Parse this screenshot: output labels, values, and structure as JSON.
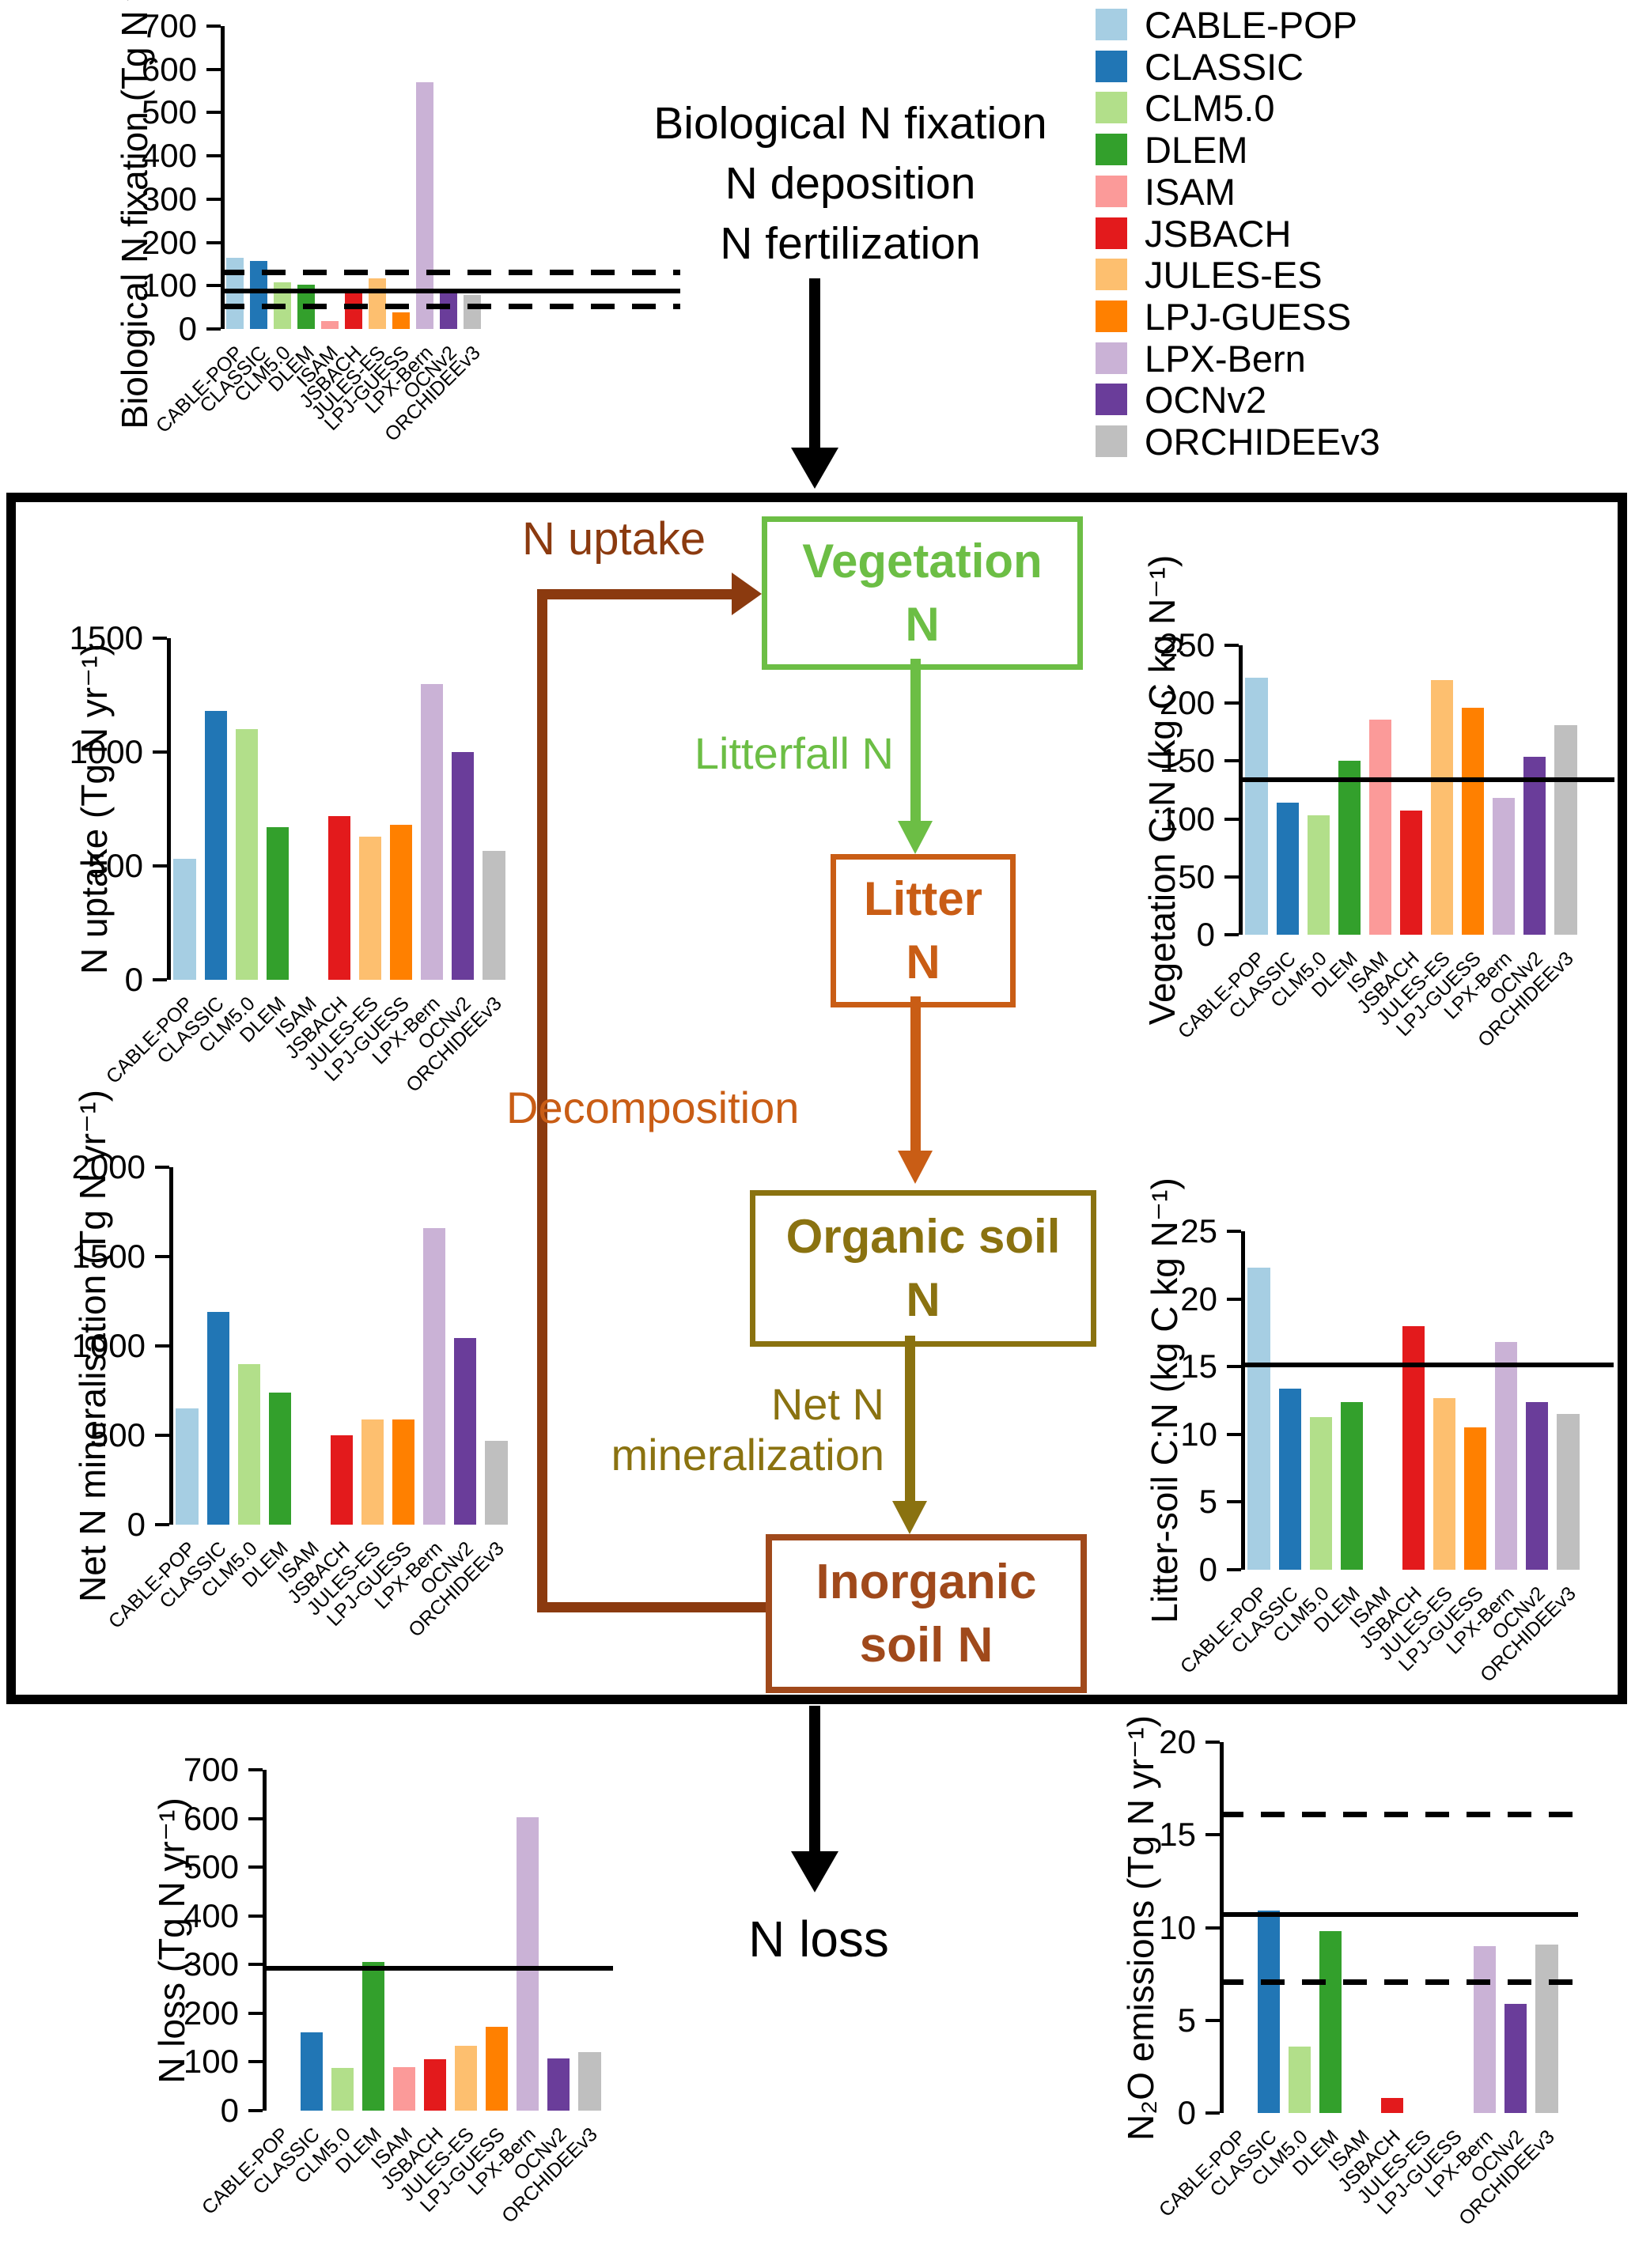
{
  "models": [
    "CABLE-POP",
    "CLASSIC",
    "CLM5.0",
    "DLEM",
    "ISAM",
    "JSBACH",
    "JULES-ES",
    "LPJ-GUESS",
    "LPX-Bern",
    "OCNv2",
    "ORCHIDEEv3"
  ],
  "palette": {
    "CABLE-POP": "#A6CEE3",
    "CLASSIC": "#2176B5",
    "CLM5.0": "#B2DF8A",
    "DLEM": "#33A02C",
    "ISAM": "#FB9A99",
    "JSBACH": "#E31A1C",
    "JULES-ES": "#FDBF6F",
    "LPJ-GUESS": "#FF8000",
    "LPX-Bern": "#CAB2D6",
    "OCNv2": "#6A3D9A",
    "ORCHIDEEv3": "#BFBFBF"
  },
  "legend": {
    "items": [
      {
        "label": "CABLE-POP",
        "color": "#A6CEE3"
      },
      {
        "label": "CLASSIC",
        "color": "#2176B5"
      },
      {
        "label": "CLM5.0",
        "color": "#B2DF8A"
      },
      {
        "label": "DLEM",
        "color": "#33A02C"
      },
      {
        "label": "ISAM",
        "color": "#FB9A99"
      },
      {
        "label": "JSBACH",
        "color": "#E31A1C"
      },
      {
        "label": "JULES-ES",
        "color": "#FDBF6F"
      },
      {
        "label": "LPJ-GUESS",
        "color": "#FF8000"
      },
      {
        "label": "LPX-Bern",
        "color": "#CAB2D6"
      },
      {
        "label": "OCNv2",
        "color": "#6A3D9A"
      },
      {
        "label": "ORCHIDEEv3",
        "color": "#BFBFBF"
      }
    ]
  },
  "flow": {
    "inputs_title_lines": [
      "Biological N fixation",
      "N deposition",
      "N fertilization"
    ],
    "boxes": {
      "vegetation": {
        "lines": [
          "Vegetation",
          "N"
        ],
        "color": "#6CBE45"
      },
      "litter": {
        "lines": [
          "Litter",
          "N"
        ],
        "color": "#C95D15"
      },
      "organic": {
        "lines": [
          "Organic soil",
          "N"
        ],
        "color": "#8A7210"
      },
      "inorganic": {
        "lines": [
          "Inorganic",
          "soil N"
        ],
        "color": "#A0491B"
      }
    },
    "labels": {
      "n_uptake": {
        "text": "N uptake",
        "color": "#8B3A0F"
      },
      "litterfall": {
        "text": "Litterfall N",
        "color": "#6CBE45"
      },
      "decomposition": {
        "text": "Decomposition",
        "color": "#C95D15"
      },
      "net_n_mineralization": {
        "lines": [
          "Net N",
          "mineralization"
        ],
        "color": "#8A7210"
      },
      "n_loss": {
        "text": "N loss",
        "color": "#000000"
      }
    }
  },
  "chart_data": [
    {
      "id": "biological_n_fixation",
      "type": "bar",
      "ylabel": "Biological N fixation (Tg N yr⁻¹)",
      "categories": [
        "CABLE-POP",
        "CLASSIC",
        "CLM5.0",
        "DLEM",
        "ISAM",
        "JSBACH",
        "JULES-ES",
        "LPJ-GUESS",
        "LPX-Bern",
        "OCNv2",
        "ORCHIDEEv3"
      ],
      "values": [
        165,
        158,
        108,
        102,
        18,
        86,
        117,
        38,
        570,
        92,
        79
      ],
      "ylim": [
        0,
        700
      ],
      "yticks": [
        0,
        100,
        200,
        300,
        400,
        500,
        600,
        700
      ],
      "ref_lines": [
        {
          "style": "solid",
          "value": 88
        },
        {
          "style": "dashed",
          "value": 132
        },
        {
          "style": "dashed",
          "value": 53
        }
      ]
    },
    {
      "id": "n_uptake",
      "type": "bar",
      "ylabel": "N uptake (Tg N yr⁻¹)",
      "categories": [
        "CABLE-POP",
        "CLASSIC",
        "CLM5.0",
        "DLEM",
        "ISAM",
        "JSBACH",
        "JULES-ES",
        "LPJ-GUESS",
        "LPX-Bern",
        "OCNv2",
        "ORCHIDEEv3"
      ],
      "values": [
        530,
        1180,
        1100,
        670,
        null,
        720,
        630,
        680,
        1300,
        1000,
        565
      ],
      "ylim": [
        0,
        1500
      ],
      "yticks": [
        0,
        500,
        1000,
        1500
      ],
      "ref_lines": []
    },
    {
      "id": "vegetation_cn",
      "type": "bar",
      "ylabel": "Vegetation C:N (kg C kg N⁻¹)",
      "categories": [
        "CABLE-POP",
        "CLASSIC",
        "CLM5.0",
        "DLEM",
        "ISAM",
        "JSBACH",
        "JULES-ES",
        "LPJ-GUESS",
        "LPX-Bern",
        "OCNv2",
        "ORCHIDEEv3"
      ],
      "values": [
        222,
        114,
        103,
        150,
        186,
        107,
        220,
        196,
        118,
        154,
        181
      ],
      "ylim": [
        0,
        250
      ],
      "yticks": [
        0,
        50,
        100,
        150,
        200,
        250
      ],
      "ref_lines": [
        {
          "style": "solid",
          "value": 134
        }
      ]
    },
    {
      "id": "net_n_mineralisation",
      "type": "bar",
      "ylabel": "Net N mineralisation (Tg N yr⁻¹)",
      "categories": [
        "CABLE-POP",
        "CLASSIC",
        "CLM5.0",
        "DLEM",
        "ISAM",
        "JSBACH",
        "JULES-ES",
        "LPJ-GUESS",
        "LPX-Bern",
        "OCNv2",
        "ORCHIDEEv3"
      ],
      "values": [
        650,
        1190,
        900,
        740,
        null,
        500,
        590,
        590,
        1660,
        1045,
        470
      ],
      "ylim": [
        0,
        2000
      ],
      "yticks": [
        0,
        500,
        1000,
        1500,
        2000
      ],
      "ref_lines": []
    },
    {
      "id": "litter_soil_cn",
      "type": "bar",
      "ylabel": "Litter-soil C:N (kg C kg N⁻¹)",
      "categories": [
        "CABLE-POP",
        "CLASSIC",
        "CLM5.0",
        "DLEM",
        "ISAM",
        "JSBACH",
        "JULES-ES",
        "LPJ-GUESS",
        "LPX-Bern",
        "OCNv2",
        "ORCHIDEEv3"
      ],
      "values": [
        22.3,
        13.4,
        11.3,
        12.4,
        null,
        18,
        12.7,
        10.5,
        16.8,
        12.4,
        11.5
      ],
      "ylim": [
        0,
        25
      ],
      "yticks": [
        0,
        5,
        10,
        15,
        20,
        25
      ],
      "ref_lines": [
        {
          "style": "solid",
          "value": 15.1
        }
      ]
    },
    {
      "id": "n_loss",
      "type": "bar",
      "ylabel": "N loss (Tg N yr⁻¹)",
      "categories": [
        "CABLE-POP",
        "CLASSIC",
        "CLM5.0",
        "DLEM",
        "ISAM",
        "JSBACH",
        "JULES-ES",
        "LPJ-GUESS",
        "LPX-Bern",
        "OCNv2",
        "ORCHIDEEv3"
      ],
      "values": [
        null,
        160,
        88,
        305,
        90,
        105,
        133,
        172,
        602,
        107,
        120
      ],
      "ylim": [
        0,
        700
      ],
      "yticks": [
        0,
        100,
        200,
        300,
        400,
        500,
        600,
        700
      ],
      "ref_lines": [
        {
          "style": "solid",
          "value": 293
        }
      ]
    },
    {
      "id": "n2o_emissions",
      "type": "bar",
      "ylabel": "N₂O emissions (Tg N yr⁻¹)",
      "categories": [
        "CABLE-POP",
        "CLASSIC",
        "CLM5.0",
        "DLEM",
        "ISAM",
        "JSBACH",
        "JULES-ES",
        "LPJ-GUESS",
        "LPX-Bern",
        "OCNv2",
        "ORCHIDEEv3"
      ],
      "values": [
        null,
        10.9,
        3.6,
        9.8,
        null,
        0.8,
        null,
        null,
        9.0,
        5.9,
        9.1
      ],
      "ylim": [
        0,
        20
      ],
      "yticks": [
        0,
        5,
        10,
        15,
        20
      ],
      "ref_lines": [
        {
          "style": "solid",
          "value": 10.7
        },
        {
          "style": "dashed",
          "value": 16.1
        },
        {
          "style": "dashed",
          "value": 7.1
        }
      ]
    }
  ]
}
